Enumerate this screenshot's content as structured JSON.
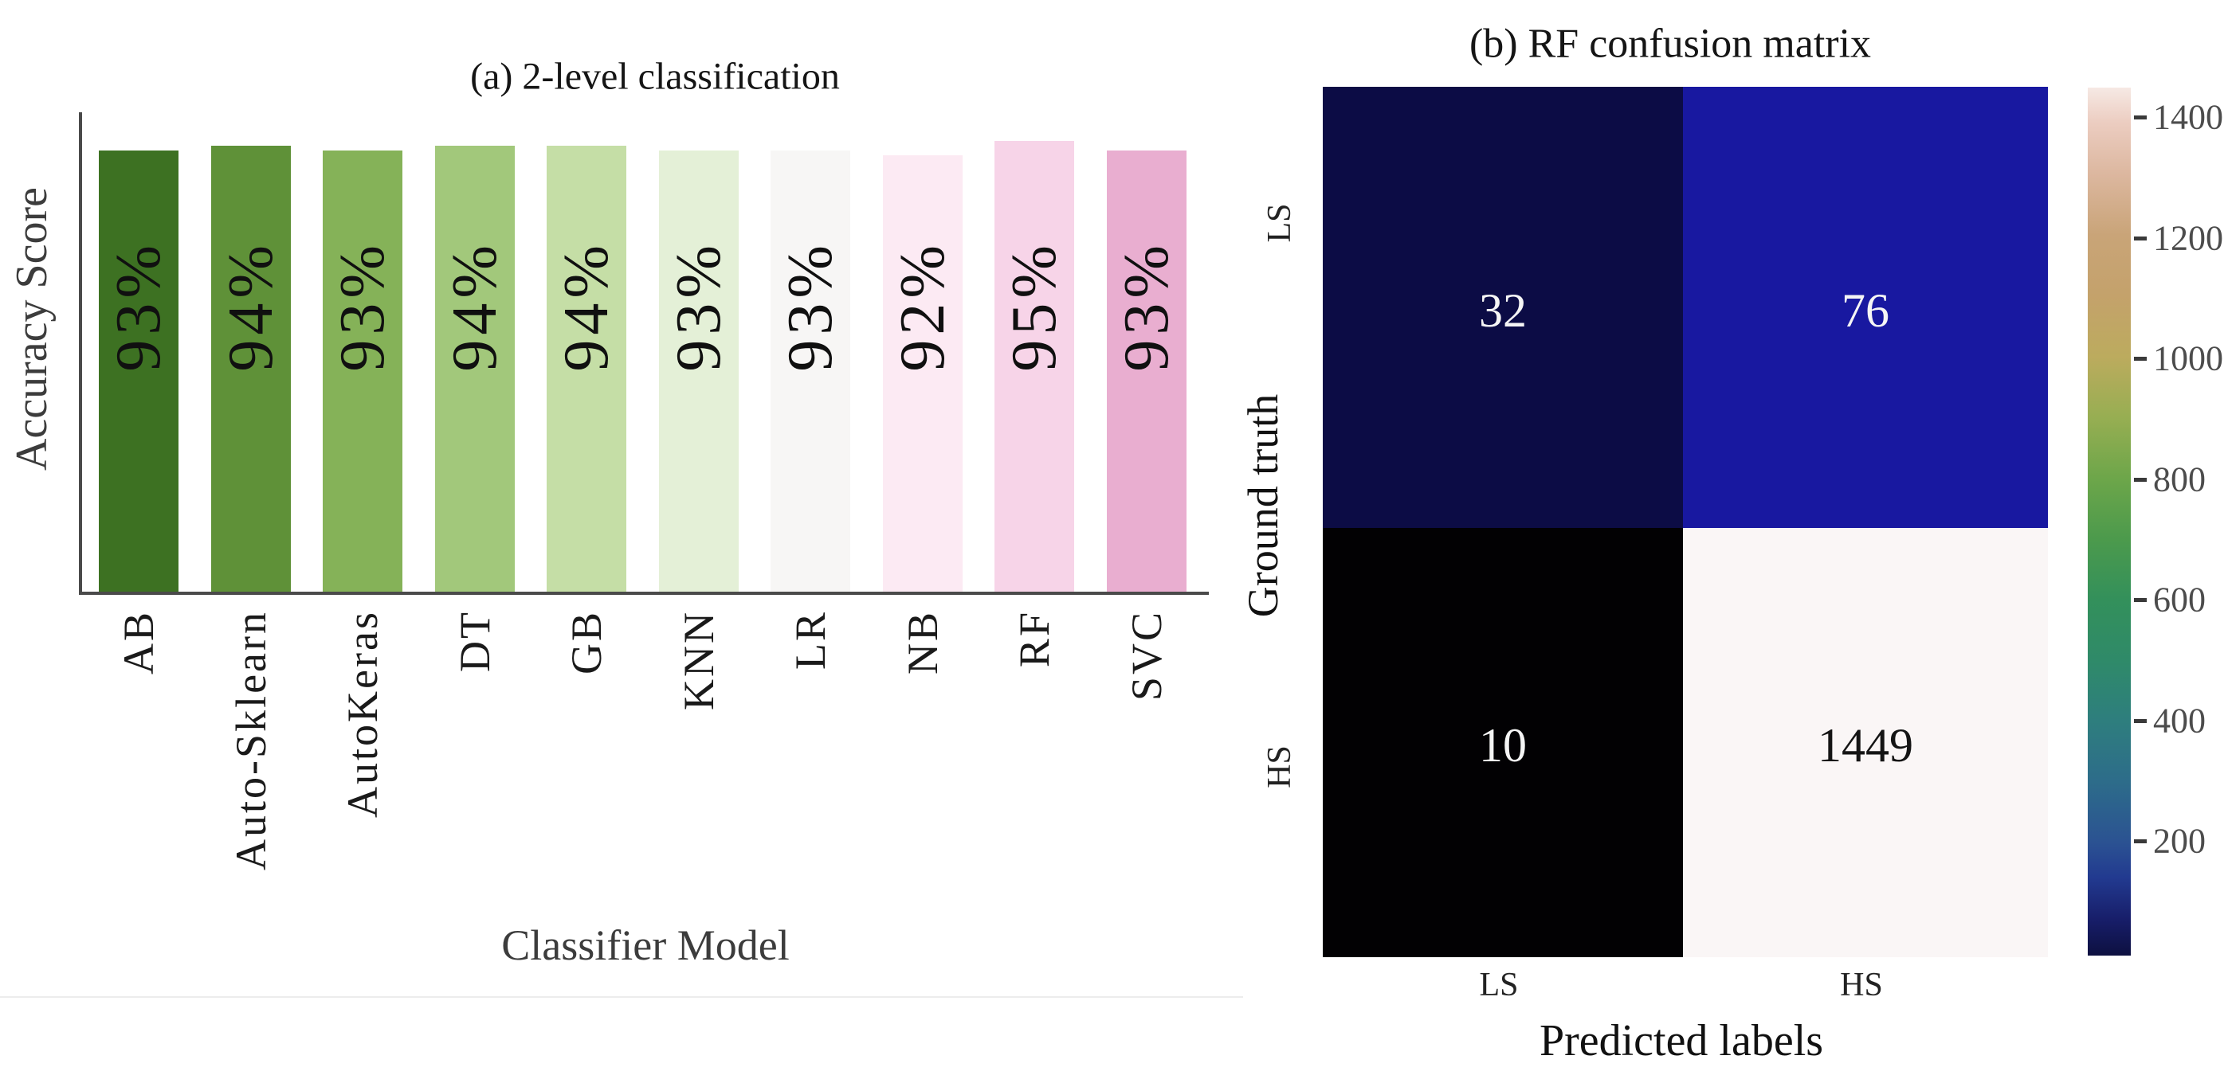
{
  "figure": {
    "background": "#ffffff",
    "panel_a_name": "2-level classification bar chart",
    "panel_b_name": "RF confusion matrix heatmap"
  },
  "chart_data": [
    {
      "type": "bar",
      "title": "(a) 2-level classification",
      "xlabel": "Classifier Model",
      "ylabel": "Accuracy Score",
      "categories": [
        "AB",
        "Auto-Sklearn",
        "AutoKeras",
        "DT",
        "GB",
        "KNN",
        "LR",
        "NB",
        "RF",
        "SVC"
      ],
      "values": [
        93,
        94,
        93,
        94,
        94,
        93,
        93,
        92,
        95,
        93
      ],
      "value_labels": [
        "93%",
        "94%",
        "93%",
        "94%",
        "94%",
        "93%",
        "93%",
        "92%",
        "95%",
        "93%"
      ],
      "bar_colors": [
        "#3d7122",
        "#5f9138",
        "#85b258",
        "#a2c87b",
        "#c5dea6",
        "#e4f0d7",
        "#f7f6f5",
        "#fceaf3",
        "#f7d4e8",
        "#e9aed0"
      ],
      "ylim": [
        0,
        100
      ],
      "grid": false,
      "legend": "none",
      "bar_label_rotation": 90,
      "xtick_rotation": 90,
      "yticks_visible": false
    },
    {
      "type": "heatmap",
      "title": "(b) RF confusion matrix",
      "xlabel": "Predicted labels",
      "ylabel": "Ground truth",
      "row_labels": [
        "LS",
        "HS"
      ],
      "col_labels": [
        "LS",
        "HS"
      ],
      "values": [
        [
          32,
          76
        ],
        [
          10,
          1449
        ]
      ],
      "cell_colors": [
        [
          "#0c0c45",
          "#1818a0"
        ],
        [
          "#020103",
          "#faf6f6"
        ]
      ],
      "cell_text_colors": [
        [
          "#f5f5f5",
          "#f5f5f5"
        ],
        [
          "#f5f5f5",
          "#141414"
        ]
      ],
      "colorbar": {
        "vmin": 10,
        "vmax": 1449,
        "ticks": [
          200,
          400,
          600,
          800,
          1000,
          1200,
          1400
        ],
        "gradient_bottom_to_top": [
          {
            "pos": 0,
            "color": "#0d1040"
          },
          {
            "pos": 4,
            "color": "#171d68"
          },
          {
            "pos": 9,
            "color": "#223a90"
          },
          {
            "pos": 13,
            "color": "#2b5292"
          },
          {
            "pos": 20,
            "color": "#2d6c8a"
          },
          {
            "pos": 27,
            "color": "#2e7e7e"
          },
          {
            "pos": 34,
            "color": "#2f8a69"
          },
          {
            "pos": 41,
            "color": "#33905b"
          },
          {
            "pos": 48,
            "color": "#4c9a4c"
          },
          {
            "pos": 55,
            "color": "#6da64a"
          },
          {
            "pos": 62,
            "color": "#97ae52"
          },
          {
            "pos": 69,
            "color": "#bcab5e"
          },
          {
            "pos": 76,
            "color": "#c4a26b"
          },
          {
            "pos": 83,
            "color": "#c9a478"
          },
          {
            "pos": 90,
            "color": "#dcb79f"
          },
          {
            "pos": 96,
            "color": "#eccdc1"
          },
          {
            "pos": 100,
            "color": "#f6e9e4"
          }
        ]
      }
    }
  ]
}
